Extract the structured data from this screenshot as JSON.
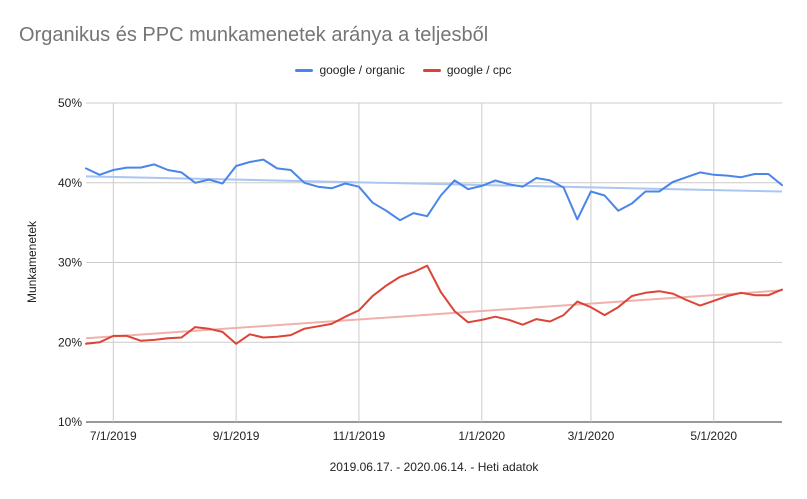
{
  "chart_data": {
    "type": "line",
    "title": "Organikus és PPC munkamenetek aránya a teljesből",
    "xlabel": "2019.06.17. - 2020.06.14. - Heti adatok",
    "ylabel": "Munkamenetek",
    "ylim": [
      10,
      50
    ],
    "y_ticks": [
      "10%",
      "20%",
      "30%",
      "40%",
      "50%"
    ],
    "x_tick_labels": [
      "7/1/2019",
      "9/1/2019",
      "11/1/2019",
      "1/1/2020",
      "3/1/2020",
      "5/1/2020"
    ],
    "x_tick_weeks": [
      2,
      11,
      20,
      29,
      37,
      46
    ],
    "grid": true,
    "legend_position": "top",
    "series": [
      {
        "name": "google / organic",
        "color": "#4a86e8",
        "trend_color": "#aac6f2",
        "values": [
          41.8,
          41.0,
          41.6,
          41.9,
          41.9,
          42.3,
          41.6,
          41.3,
          40.0,
          40.4,
          39.9,
          42.1,
          42.6,
          42.9,
          41.8,
          41.6,
          40.0,
          39.5,
          39.3,
          39.9,
          39.5,
          37.5,
          36.5,
          35.3,
          36.2,
          35.8,
          38.4,
          40.3,
          39.2,
          39.6,
          40.3,
          39.8,
          39.5,
          40.6,
          40.3,
          39.4,
          35.4,
          38.9,
          38.4,
          36.5,
          37.4,
          38.9,
          38.9,
          40.1,
          40.7,
          41.3,
          41.0,
          40.9,
          40.7,
          41.1,
          41.1,
          39.7
        ],
        "trend": [
          40.8,
          38.9
        ]
      },
      {
        "name": "google / cpc",
        "color": "#db4437",
        "trend_color": "#f0b1ac",
        "values": [
          19.8,
          20.0,
          20.8,
          20.8,
          20.2,
          20.3,
          20.5,
          20.6,
          21.9,
          21.7,
          21.3,
          19.8,
          21.0,
          20.6,
          20.7,
          20.9,
          21.7,
          22.0,
          22.3,
          23.2,
          24.0,
          25.8,
          27.1,
          28.2,
          28.8,
          29.6,
          26.3,
          23.9,
          22.5,
          22.8,
          23.2,
          22.8,
          22.2,
          22.9,
          22.6,
          23.4,
          25.1,
          24.4,
          23.4,
          24.4,
          25.8,
          26.2,
          26.4,
          26.1,
          25.3,
          24.6,
          25.2,
          25.8,
          26.2,
          25.9,
          25.9,
          26.6
        ],
        "trend": [
          20.5,
          26.5
        ]
      }
    ]
  }
}
